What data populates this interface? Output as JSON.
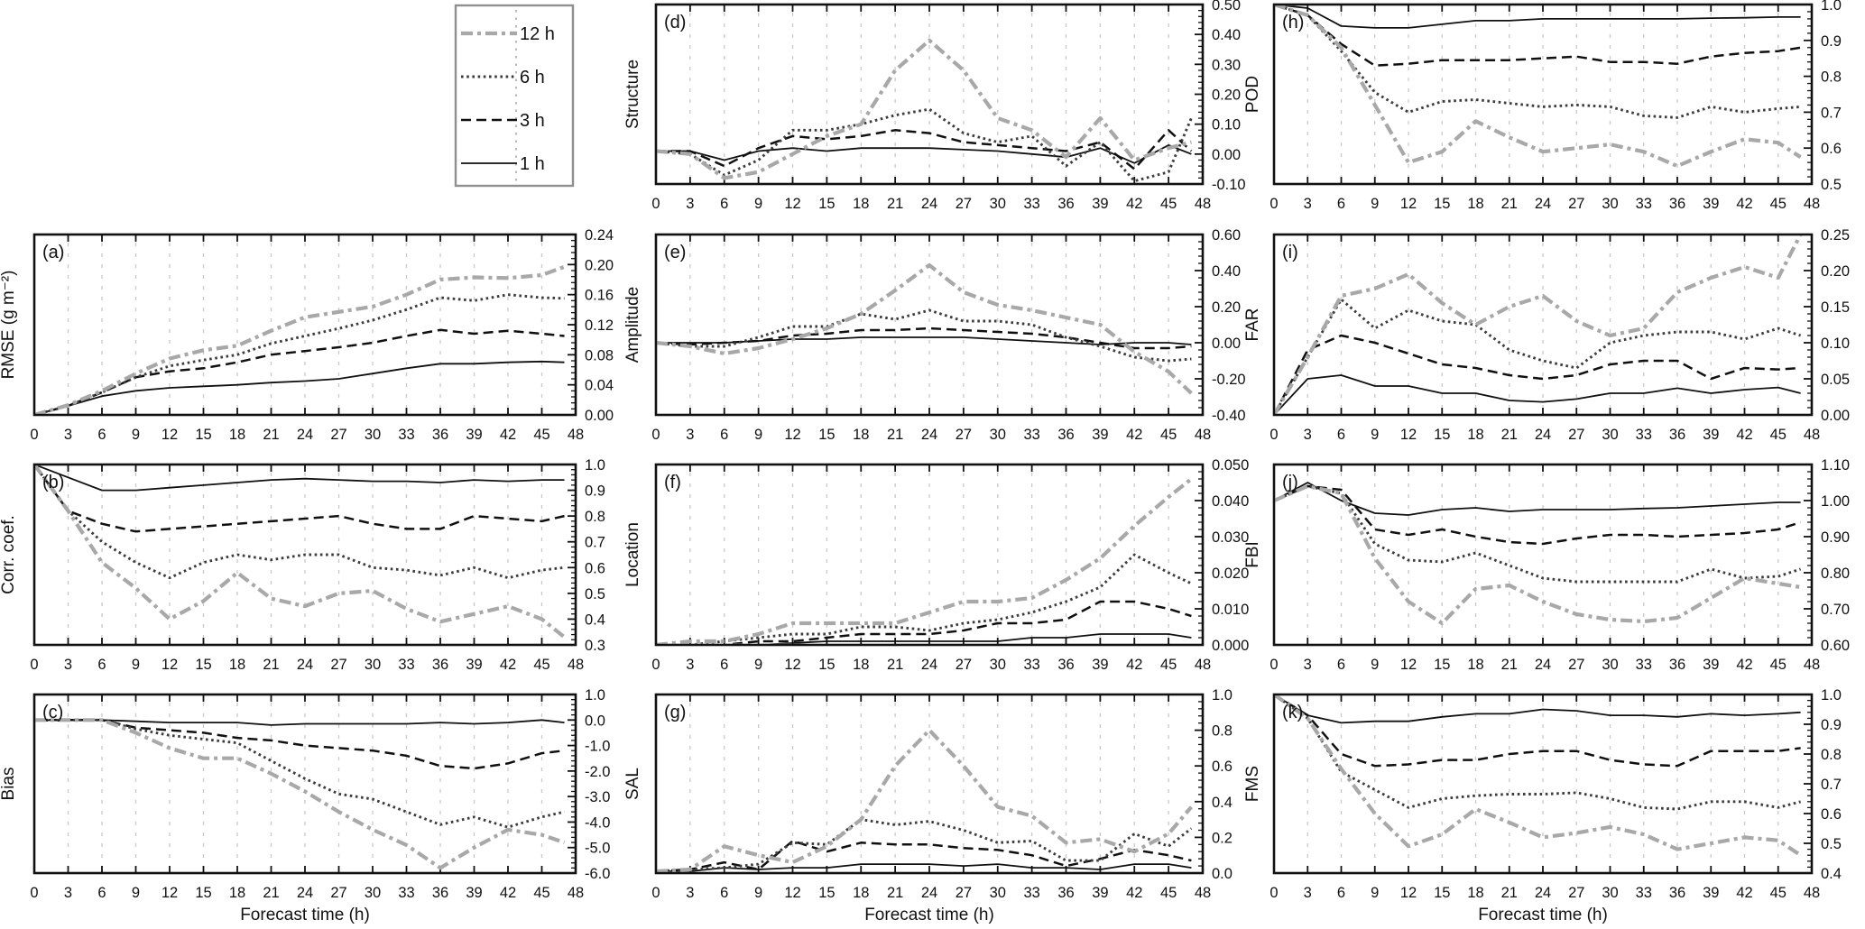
{
  "figure": {
    "description": "Forecast verification scores versus forecast time for 1 h, 3 h, 6 h and 12 h forecasts",
    "xlabel": "Forecast time (h)"
  },
  "legend": {
    "items": [
      {
        "id": "h12",
        "label": "12 h"
      },
      {
        "id": "h6",
        "label": "6 h"
      },
      {
        "id": "h3",
        "label": "3 h"
      },
      {
        "id": "h1",
        "label": "1 h"
      }
    ]
  },
  "chart_data": {
    "type": "line",
    "xlabel": "Forecast time (h)",
    "grid": "vertical-dashed",
    "legend_position": "top-left",
    "x_ticks": [
      0,
      3,
      6,
      9,
      12,
      15,
      18,
      21,
      24,
      27,
      30,
      33,
      36,
      39,
      42,
      45,
      48
    ],
    "x": [
      0,
      3,
      6,
      9,
      12,
      15,
      18,
      21,
      24,
      27,
      30,
      33,
      36,
      39,
      42,
      45,
      47
    ],
    "series_styles": {
      "h12": {
        "label": "12 h",
        "color": "#a8a8a8",
        "pattern": "dash-dot",
        "thick": true
      },
      "h6": {
        "label": "6 h",
        "color": "#3c3c3c",
        "pattern": "dotted",
        "thick": false
      },
      "h3": {
        "label": "3 h",
        "color": "#101010",
        "pattern": "dashed",
        "thick": false
      },
      "h1": {
        "label": "1 h",
        "color": "#101010",
        "pattern": "solid",
        "thick": false
      }
    },
    "panels": [
      {
        "id": "a",
        "letter": "(a)",
        "ylabel": "RMSE (g m⁻²)",
        "ylim": [
          0,
          0.24
        ],
        "yticks": [
          "0.00",
          "0.04",
          "0.08",
          "0.12",
          "0.16",
          "0.20",
          "0.24"
        ],
        "series": {
          "h1": [
            0.0,
            0.012,
            0.025,
            0.032,
            0.036,
            0.038,
            0.04,
            0.043,
            0.045,
            0.048,
            0.055,
            0.062,
            0.068,
            0.068,
            0.07,
            0.071,
            0.07
          ],
          "h3": [
            0.0,
            0.012,
            0.03,
            0.05,
            0.058,
            0.062,
            0.07,
            0.08,
            0.085,
            0.09,
            0.096,
            0.105,
            0.113,
            0.108,
            0.112,
            0.108,
            0.105
          ],
          "h6": [
            0.0,
            0.012,
            0.03,
            0.05,
            0.065,
            0.073,
            0.08,
            0.095,
            0.105,
            0.115,
            0.126,
            0.14,
            0.156,
            0.152,
            0.16,
            0.156,
            0.155
          ],
          "h12": [
            0.0,
            0.013,
            0.032,
            0.055,
            0.075,
            0.086,
            0.092,
            0.112,
            0.13,
            0.137,
            0.144,
            0.16,
            0.18,
            0.183,
            0.182,
            0.186,
            0.197
          ]
        }
      },
      {
        "id": "b",
        "letter": "(b)",
        "ylabel": "Corr. coef.",
        "ylim": [
          0.3,
          1.0
        ],
        "yticks": [
          "0.3",
          "0.4",
          "0.5",
          "0.6",
          "0.7",
          "0.8",
          "0.9",
          "1.0"
        ],
        "series": {
          "h1": [
            1.0,
            0.95,
            0.9,
            0.9,
            0.91,
            0.92,
            0.93,
            0.94,
            0.945,
            0.94,
            0.935,
            0.935,
            0.93,
            0.94,
            0.935,
            0.94,
            0.94
          ],
          "h3": [
            1.0,
            0.82,
            0.77,
            0.74,
            0.75,
            0.76,
            0.77,
            0.78,
            0.79,
            0.8,
            0.77,
            0.75,
            0.75,
            0.8,
            0.79,
            0.78,
            0.8
          ],
          "h6": [
            1.0,
            0.82,
            0.7,
            0.62,
            0.56,
            0.62,
            0.65,
            0.63,
            0.65,
            0.65,
            0.6,
            0.59,
            0.57,
            0.6,
            0.56,
            0.59,
            0.6
          ],
          "h12": [
            1.0,
            0.82,
            0.62,
            0.52,
            0.4,
            0.47,
            0.58,
            0.48,
            0.45,
            0.5,
            0.51,
            0.44,
            0.39,
            0.42,
            0.45,
            0.4,
            0.33
          ]
        }
      },
      {
        "id": "c",
        "letter": "(c)",
        "ylabel": "Bias",
        "ylim": [
          -6.0,
          1.0
        ],
        "yticks": [
          "-6.0",
          "-5.0",
          "-4.0",
          "-3.0",
          "-2.0",
          "-1.0",
          "0.0",
          "1.0"
        ],
        "series": {
          "h1": [
            0,
            0,
            0,
            -0.05,
            -0.1,
            -0.1,
            -0.1,
            -0.2,
            -0.15,
            -0.15,
            -0.15,
            -0.15,
            -0.1,
            -0.15,
            -0.1,
            0.0,
            -0.1
          ],
          "h3": [
            0,
            0,
            0,
            -0.3,
            -0.4,
            -0.5,
            -0.7,
            -0.8,
            -1.0,
            -1.1,
            -1.2,
            -1.4,
            -1.8,
            -1.9,
            -1.7,
            -1.3,
            -1.2
          ],
          "h6": [
            0,
            0,
            0,
            -0.35,
            -0.6,
            -0.75,
            -0.9,
            -1.6,
            -2.3,
            -2.9,
            -3.1,
            -3.6,
            -4.1,
            -3.8,
            -4.2,
            -3.8,
            -3.6
          ],
          "h12": [
            0,
            0,
            0,
            -0.5,
            -1.1,
            -1.5,
            -1.5,
            -2.1,
            -2.8,
            -3.6,
            -4.3,
            -4.9,
            -5.8,
            -5.0,
            -4.3,
            -4.5,
            -4.8
          ]
        }
      },
      {
        "id": "d",
        "letter": "(d)",
        "ylabel": "Structure",
        "ylim": [
          -0.1,
          0.5
        ],
        "yticks": [
          "-0.10",
          "0.00",
          "0.10",
          "0.20",
          "0.30",
          "0.40",
          "0.50"
        ],
        "series": {
          "h1": [
            0.01,
            0.01,
            -0.02,
            0.01,
            0.02,
            0.01,
            0.02,
            0.02,
            0.02,
            0.015,
            0.01,
            0.0,
            -0.01,
            0.02,
            -0.03,
            0.03,
            0.0
          ],
          "h3": [
            0.01,
            0.01,
            -0.04,
            0.02,
            0.06,
            0.05,
            0.06,
            0.08,
            0.07,
            0.04,
            0.03,
            0.02,
            0.01,
            0.04,
            -0.05,
            0.08,
            0.01
          ],
          "h6": [
            0.01,
            0.0,
            -0.07,
            -0.02,
            0.08,
            0.08,
            0.1,
            0.13,
            0.15,
            0.07,
            0.04,
            0.06,
            -0.04,
            0.04,
            -0.09,
            -0.06,
            0.12
          ],
          "h12": [
            0.01,
            0.0,
            -0.08,
            -0.06,
            0.0,
            0.06,
            0.1,
            0.28,
            0.38,
            0.28,
            0.12,
            0.08,
            -0.01,
            0.12,
            -0.02,
            0.02,
            0.04
          ]
        }
      },
      {
        "id": "e",
        "letter": "(e)",
        "ylabel": "Amplitude",
        "ylim": [
          -0.4,
          0.6
        ],
        "yticks": [
          "-0.40",
          "-0.20",
          "0.00",
          "0.20",
          "0.40",
          "0.60"
        ],
        "series": {
          "h1": [
            0.0,
            0.0,
            0.0,
            0.01,
            0.02,
            0.02,
            0.03,
            0.03,
            0.03,
            0.03,
            0.02,
            0.01,
            0.0,
            -0.01,
            0.0,
            0.0,
            -0.01
          ],
          "h3": [
            0.0,
            -0.01,
            0.0,
            0.01,
            0.04,
            0.05,
            0.07,
            0.07,
            0.08,
            0.07,
            0.06,
            0.05,
            0.03,
            0.0,
            -0.03,
            -0.03,
            -0.02
          ],
          "h6": [
            0.0,
            -0.02,
            -0.02,
            0.03,
            0.09,
            0.09,
            0.16,
            0.13,
            0.18,
            0.12,
            0.12,
            0.1,
            0.03,
            -0.02,
            -0.08,
            -0.1,
            -0.09
          ],
          "h12": [
            0.0,
            -0.02,
            -0.06,
            -0.03,
            0.02,
            0.08,
            0.16,
            0.29,
            0.43,
            0.28,
            0.21,
            0.18,
            0.14,
            0.1,
            -0.05,
            -0.16,
            -0.28
          ]
        }
      },
      {
        "id": "f",
        "letter": "(f)",
        "ylabel": "Location",
        "ylim": [
          0.0,
          0.05
        ],
        "yticks": [
          "0.000",
          "0.010",
          "0.020",
          "0.030",
          "0.040",
          "0.050"
        ],
        "series": {
          "h1": [
            0,
            0,
            0,
            0,
            0.0005,
            0.001,
            0.001,
            0.001,
            0.001,
            0.001,
            0.001,
            0.002,
            0.002,
            0.003,
            0.003,
            0.003,
            0.002
          ],
          "h3": [
            0,
            0,
            0,
            0.001,
            0.001,
            0.002,
            0.003,
            0.003,
            0.003,
            0.004,
            0.006,
            0.006,
            0.007,
            0.012,
            0.012,
            0.01,
            0.008
          ],
          "h6": [
            0,
            0,
            0.001,
            0.002,
            0.003,
            0.003,
            0.005,
            0.005,
            0.004,
            0.006,
            0.007,
            0.009,
            0.012,
            0.016,
            0.025,
            0.02,
            0.017
          ],
          "h12": [
            0,
            0.001,
            0.001,
            0.003,
            0.006,
            0.006,
            0.006,
            0.006,
            0.009,
            0.012,
            0.012,
            0.013,
            0.018,
            0.024,
            0.033,
            0.041,
            0.046
          ]
        }
      },
      {
        "id": "g",
        "letter": "(g)",
        "ylabel": "SAL",
        "ylim": [
          0.0,
          1.0
        ],
        "yticks": [
          "0.0",
          "0.2",
          "0.4",
          "0.6",
          "0.8",
          "1.0"
        ],
        "series": {
          "h1": [
            0.01,
            0.01,
            0.03,
            0.02,
            0.03,
            0.03,
            0.05,
            0.05,
            0.05,
            0.04,
            0.05,
            0.03,
            0.03,
            0.02,
            0.05,
            0.05,
            0.03
          ],
          "h3": [
            0.01,
            0.02,
            0.06,
            0.02,
            0.18,
            0.12,
            0.17,
            0.16,
            0.16,
            0.14,
            0.13,
            0.1,
            0.04,
            0.08,
            0.13,
            0.1,
            0.07
          ],
          "h6": [
            0.01,
            0.02,
            0.03,
            0.05,
            0.17,
            0.16,
            0.3,
            0.27,
            0.29,
            0.24,
            0.17,
            0.18,
            0.07,
            0.07,
            0.22,
            0.15,
            0.25
          ],
          "h12": [
            0.01,
            0.02,
            0.15,
            0.1,
            0.06,
            0.15,
            0.3,
            0.6,
            0.8,
            0.6,
            0.37,
            0.32,
            0.17,
            0.19,
            0.12,
            0.22,
            0.37
          ]
        }
      },
      {
        "id": "h",
        "letter": "(h)",
        "ylabel": "POD",
        "ylim": [
          0.5,
          1.0
        ],
        "yticks": [
          "0.5",
          "0.6",
          "0.7",
          "0.8",
          "0.9",
          "1.0"
        ],
        "series": {
          "h1": [
            1.0,
            0.99,
            0.94,
            0.935,
            0.935,
            0.945,
            0.955,
            0.955,
            0.96,
            0.96,
            0.96,
            0.96,
            0.96,
            0.962,
            0.963,
            0.965,
            0.965
          ],
          "h3": [
            1.0,
            0.97,
            0.89,
            0.83,
            0.835,
            0.845,
            0.845,
            0.845,
            0.85,
            0.855,
            0.84,
            0.84,
            0.835,
            0.855,
            0.865,
            0.87,
            0.88
          ],
          "h6": [
            1.0,
            0.97,
            0.87,
            0.755,
            0.7,
            0.73,
            0.735,
            0.725,
            0.715,
            0.72,
            0.715,
            0.69,
            0.685,
            0.715,
            0.7,
            0.71,
            0.715
          ],
          "h12": [
            1.0,
            0.97,
            0.88,
            0.72,
            0.56,
            0.59,
            0.675,
            0.63,
            0.59,
            0.6,
            0.61,
            0.59,
            0.55,
            0.59,
            0.625,
            0.615,
            0.575
          ]
        }
      },
      {
        "id": "i",
        "letter": "(i)",
        "ylabel": "FAR",
        "ylim": [
          0.0,
          0.25
        ],
        "yticks": [
          "0.00",
          "0.05",
          "0.10",
          "0.15",
          "0.20",
          "0.25"
        ],
        "series": {
          "h1": [
            0,
            0.05,
            0.055,
            0.04,
            0.04,
            0.03,
            0.03,
            0.02,
            0.018,
            0.022,
            0.03,
            0.03,
            0.037,
            0.03,
            0.035,
            0.038,
            0.03
          ],
          "h3": [
            0,
            0.09,
            0.11,
            0.1,
            0.085,
            0.07,
            0.065,
            0.055,
            0.05,
            0.055,
            0.07,
            0.075,
            0.075,
            0.05,
            0.065,
            0.063,
            0.065
          ],
          "h6": [
            0,
            0.08,
            0.16,
            0.12,
            0.145,
            0.13,
            0.125,
            0.09,
            0.075,
            0.065,
            0.1,
            0.11,
            0.115,
            0.115,
            0.105,
            0.12,
            0.11
          ],
          "h12": [
            0,
            0.08,
            0.165,
            0.175,
            0.195,
            0.155,
            0.125,
            0.15,
            0.165,
            0.13,
            0.11,
            0.12,
            0.17,
            0.19,
            0.205,
            0.19,
            0.25
          ]
        }
      },
      {
        "id": "j",
        "letter": "(j)",
        "ylabel": "FBI",
        "ylim": [
          0.6,
          1.1
        ],
        "yticks": [
          "0.60",
          "0.70",
          "0.80",
          "0.90",
          "1.00",
          "1.10"
        ],
        "series": {
          "h1": [
            1.0,
            1.05,
            1.0,
            0.965,
            0.96,
            0.975,
            0.98,
            0.97,
            0.975,
            0.975,
            0.975,
            0.978,
            0.98,
            0.985,
            0.99,
            0.995,
            0.995
          ],
          "h3": [
            1.0,
            1.04,
            1.03,
            0.92,
            0.905,
            0.92,
            0.9,
            0.885,
            0.88,
            0.895,
            0.905,
            0.905,
            0.9,
            0.905,
            0.91,
            0.92,
            0.94
          ],
          "h6": [
            1.0,
            1.04,
            1.02,
            0.88,
            0.835,
            0.83,
            0.855,
            0.82,
            0.785,
            0.775,
            0.775,
            0.775,
            0.775,
            0.81,
            0.785,
            0.79,
            0.81
          ],
          "h12": [
            1.0,
            1.04,
            1.02,
            0.84,
            0.72,
            0.66,
            0.755,
            0.765,
            0.72,
            0.685,
            0.67,
            0.665,
            0.675,
            0.73,
            0.785,
            0.77,
            0.76
          ]
        }
      },
      {
        "id": "k",
        "letter": "(k)",
        "ylabel": "FMS",
        "ylim": [
          0.4,
          1.0
        ],
        "yticks": [
          "0.4",
          "0.5",
          "0.6",
          "0.7",
          "0.8",
          "0.9",
          "1.0"
        ],
        "series": {
          "h1": [
            1.0,
            0.93,
            0.905,
            0.91,
            0.91,
            0.925,
            0.935,
            0.935,
            0.95,
            0.945,
            0.93,
            0.93,
            0.925,
            0.935,
            0.93,
            0.935,
            0.94
          ],
          "h3": [
            1.0,
            0.93,
            0.8,
            0.76,
            0.765,
            0.78,
            0.78,
            0.8,
            0.81,
            0.81,
            0.78,
            0.765,
            0.76,
            0.81,
            0.81,
            0.81,
            0.82
          ],
          "h6": [
            1.0,
            0.92,
            0.74,
            0.68,
            0.62,
            0.65,
            0.66,
            0.665,
            0.665,
            0.67,
            0.65,
            0.62,
            0.615,
            0.64,
            0.64,
            0.62,
            0.64
          ],
          "h12": [
            1.0,
            0.92,
            0.75,
            0.6,
            0.49,
            0.53,
            0.615,
            0.57,
            0.52,
            0.535,
            0.555,
            0.53,
            0.48,
            0.5,
            0.52,
            0.51,
            0.46
          ]
        }
      }
    ]
  }
}
